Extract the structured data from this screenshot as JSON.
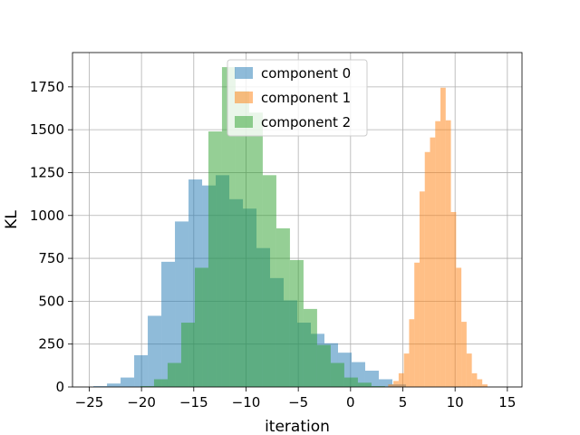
{
  "chart_data": {
    "type": "histogram",
    "xlabel": "iteration",
    "ylabel": "KL",
    "xlim": [
      -26.6,
      16.4
    ],
    "ylim": [
      0,
      1950
    ],
    "xticks": [
      -25,
      -20,
      -15,
      -10,
      -5,
      0,
      5,
      10,
      15
    ],
    "yticks": [
      0,
      250,
      500,
      750,
      1000,
      1250,
      1500,
      1750
    ],
    "grid": true,
    "legend_position": "top-center",
    "series": [
      {
        "name": "component 0",
        "color": "#1f77b4",
        "opacity": 0.5,
        "bin_start": -24.6,
        "bin_width": 1.3,
        "values": [
          5,
          20,
          55,
          185,
          415,
          730,
          965,
          1210,
          1175,
          1235,
          1095,
          1040,
          810,
          635,
          505,
          375,
          310,
          255,
          200,
          145,
          95,
          45,
          15
        ]
      },
      {
        "name": "component 1",
        "color": "#ff7f0e",
        "opacity": 0.5,
        "bin_start": 3.6,
        "bin_width": 0.5,
        "values": [
          15,
          35,
          80,
          195,
          395,
          725,
          1140,
          1370,
          1455,
          1550,
          1745,
          1555,
          1020,
          695,
          380,
          195,
          80,
          45,
          15
        ]
      },
      {
        "name": "component 2",
        "color": "#2ca02c",
        "opacity": 0.5,
        "bin_start": -20.1,
        "bin_width": 1.3,
        "values": [
          5,
          45,
          140,
          375,
          695,
          1490,
          1865,
          1725,
          1600,
          1235,
          925,
          740,
          455,
          245,
          140,
          55,
          25,
          5
        ]
      }
    ]
  }
}
